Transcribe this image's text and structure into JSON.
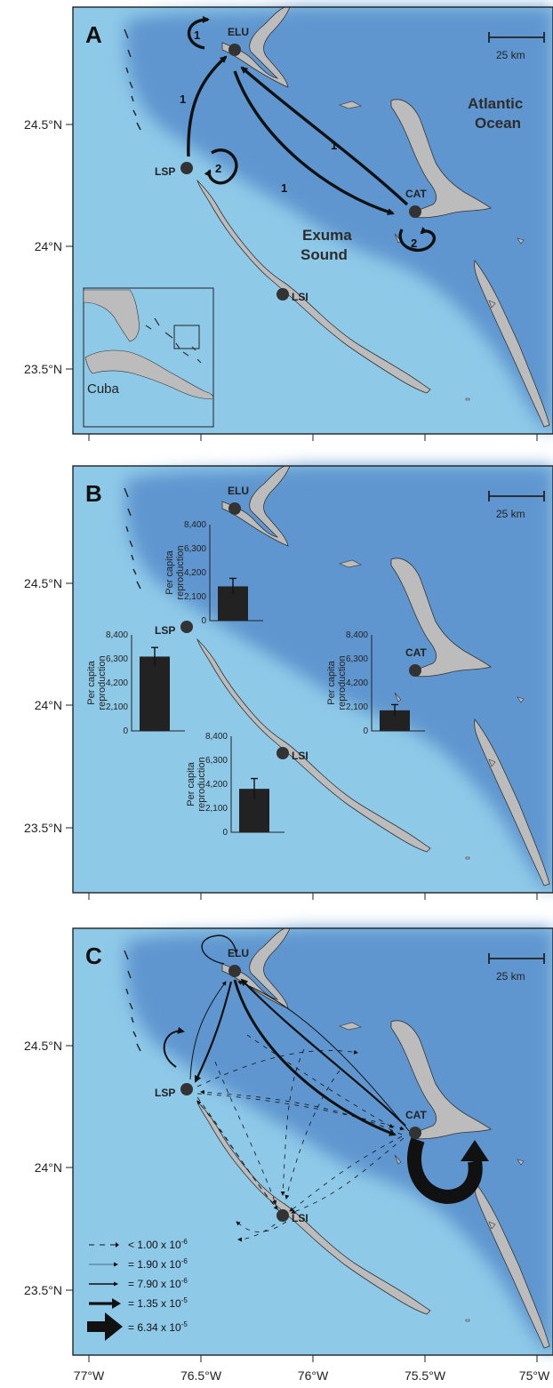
{
  "panels": [
    {
      "label": "A"
    },
    {
      "label": "B"
    },
    {
      "label": "C"
    }
  ],
  "latitude_labels": [
    "24.5°N",
    "24°N",
    "23.5°N"
  ],
  "longitude_labels": [
    "77°W",
    "76.5°W",
    "76°W",
    "75.5°W",
    "75°W"
  ],
  "sites": {
    "elu": "ELU",
    "lsp": "LSP",
    "cat": "CAT",
    "lsi": "LSI"
  },
  "scale_bar": "25 km",
  "ocean_labels": {
    "atlantic_line1": "Atlantic",
    "atlantic_line2": "Ocean",
    "exuma_line1": "Exuma",
    "exuma_line2": "Sound"
  },
  "inset_label": "Cuba",
  "panel_a_flow_labels": {
    "elu_self": "1",
    "lsp_to_elu": "1",
    "cat_to_elu": "1",
    "elu_to_cat": "1",
    "lsp_self": "2",
    "cat_self": "2"
  },
  "chart_data": [
    {
      "type": "bar",
      "site": "ELU",
      "ylabel": "Per capita reproduction",
      "yticks": [
        "8,400",
        "6,300",
        "4,200",
        "2,100",
        "0"
      ],
      "ylim": [
        0,
        8400
      ],
      "values": [
        3000
      ],
      "error": [
        700
      ]
    },
    {
      "type": "bar",
      "site": "LSP",
      "ylabel": "Per capita reproduction",
      "yticks": [
        "8,400",
        "6,300",
        "4,200",
        "2,100",
        "0"
      ],
      "ylim": [
        0,
        8400
      ],
      "values": [
        6500
      ],
      "error": [
        800
      ]
    },
    {
      "type": "bar",
      "site": "CAT",
      "ylabel": "Per capita reproduction",
      "yticks": [
        "8,400",
        "6,300",
        "4,200",
        "2,100",
        "0"
      ],
      "ylim": [
        0,
        8400
      ],
      "values": [
        1800
      ],
      "error": [
        500
      ]
    },
    {
      "type": "bar",
      "site": "LSI",
      "ylabel": "Per capita reproduction",
      "yticks": [
        "8,400",
        "6,300",
        "4,200",
        "2,100",
        "0"
      ],
      "ylim": [
        0,
        8400
      ],
      "values": [
        3800
      ],
      "error": [
        900
      ]
    }
  ],
  "legend_c": [
    {
      "text": "< 1.00 x 10",
      "exp": "-6"
    },
    {
      "text": "= 1.90 x 10",
      "exp": "-6"
    },
    {
      "text": "= 7.90 x 10",
      "exp": "-6"
    },
    {
      "text": "= 1.35 x 10",
      "exp": "-5"
    },
    {
      "text": "= 6.34 x 10",
      "exp": "-5"
    }
  ],
  "colors": {
    "shallow": "#8ec9e8",
    "deep": "#5f96cf",
    "land": "#bcbcbc",
    "frame": "#222222"
  }
}
